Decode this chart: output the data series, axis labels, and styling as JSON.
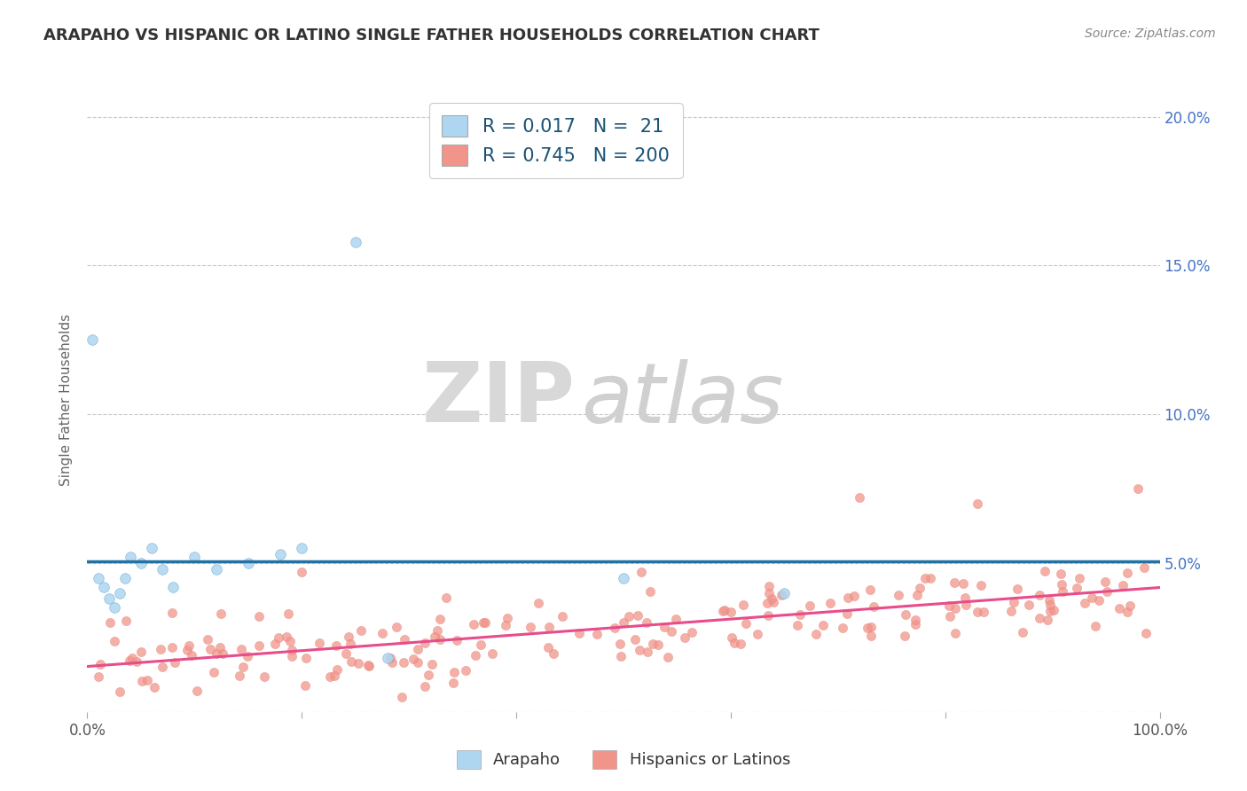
{
  "title": "ARAPAHO VS HISPANIC OR LATINO SINGLE FATHER HOUSEHOLDS CORRELATION CHART",
  "source_text": "Source: ZipAtlas.com",
  "ylabel": "Single Father Households",
  "xlim": [
    0,
    100
  ],
  "ylim": [
    0,
    21
  ],
  "arapaho_color": "#aed6f1",
  "arapaho_edge_color": "#7fb3d3",
  "arapaho_line_color": "#2471a3",
  "hispanic_color": "#f1948a",
  "hispanic_edge_color": "#e07b72",
  "hispanic_line_color": "#e74c8b",
  "legend_R_arapaho": "0.017",
  "legend_N_arapaho": " 21",
  "legend_R_hispanic": "0.745",
  "legend_N_hispanic": "200",
  "legend_label_arapaho": "Arapaho",
  "legend_label_hispanic": "Hispanics or Latinos",
  "watermark_zip": "ZIP",
  "watermark_atlas": "atlas",
  "background_color": "#ffffff",
  "grid_color": "#bbbbbb",
  "right_tick_color": "#4472c4",
  "title_color": "#333333",
  "source_color": "#888888",
  "ylabel_color": "#666666"
}
